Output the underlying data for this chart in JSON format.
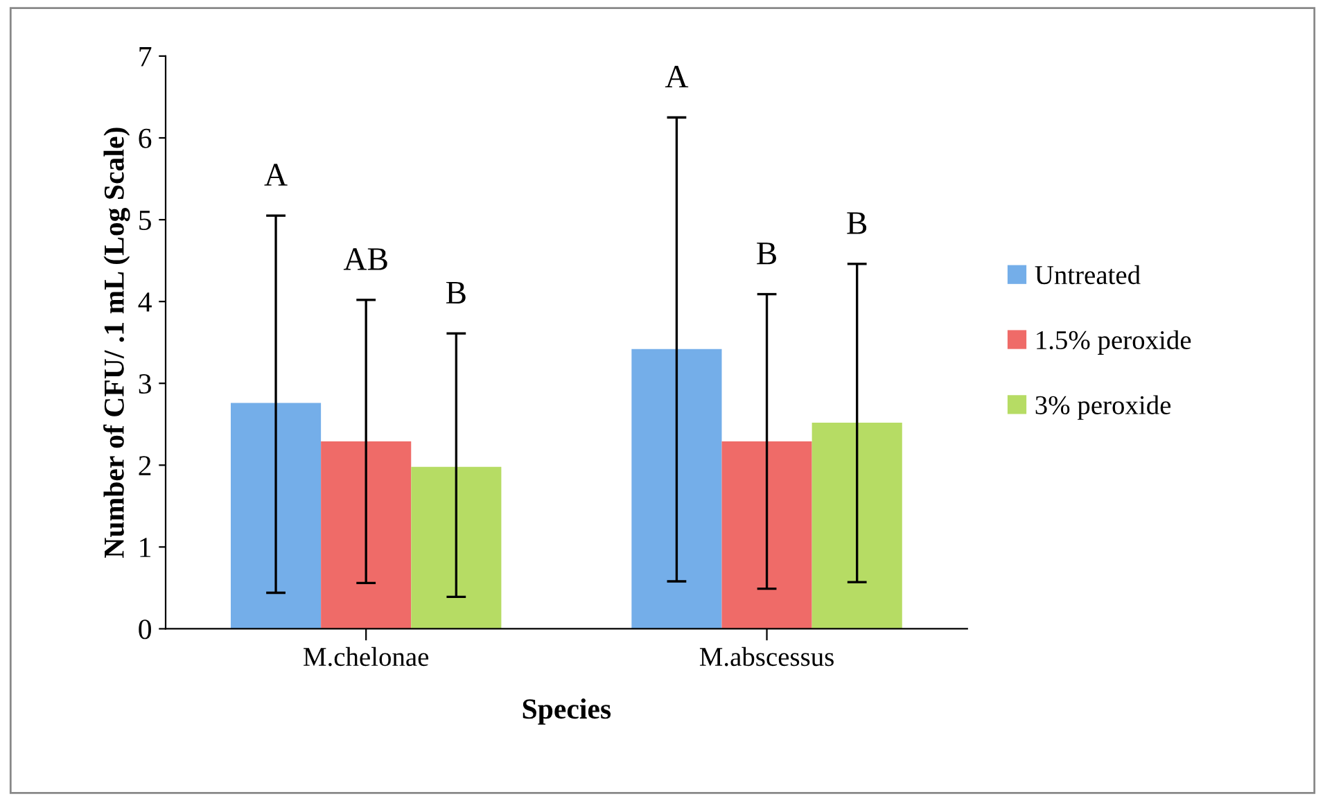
{
  "chart_data": {
    "type": "bar",
    "xlabel": "Species",
    "ylabel": "Number of CFU/ .1 mL (Log Scale)",
    "categories": [
      "M.chelonae",
      "M.abscessus"
    ],
    "series": [
      {
        "name": "Untreated",
        "color": "#74aee9",
        "values": [
          2.76,
          3.42
        ],
        "errors": [
          [
            0.44,
            5.05
          ],
          [
            0.58,
            6.25
          ]
        ]
      },
      {
        "name": "1.5% peroxide",
        "color": "#ef6b68",
        "values": [
          2.29,
          2.29
        ],
        "errors": [
          [
            0.56,
            4.02
          ],
          [
            0.49,
            4.09
          ]
        ]
      },
      {
        "name": "3% peroxide",
        "color": "#b6dc64",
        "values": [
          1.98,
          2.52
        ],
        "errors": [
          [
            0.39,
            3.61
          ],
          [
            0.57,
            4.46
          ]
        ]
      }
    ],
    "annotations": [
      "A",
      "AB",
      "B",
      "A",
      "B",
      "B"
    ],
    "ylim": [
      0,
      7
    ],
    "yticks": [
      0,
      1,
      2,
      3,
      4,
      5,
      6,
      7
    ],
    "grid": false,
    "legend": "right"
  }
}
